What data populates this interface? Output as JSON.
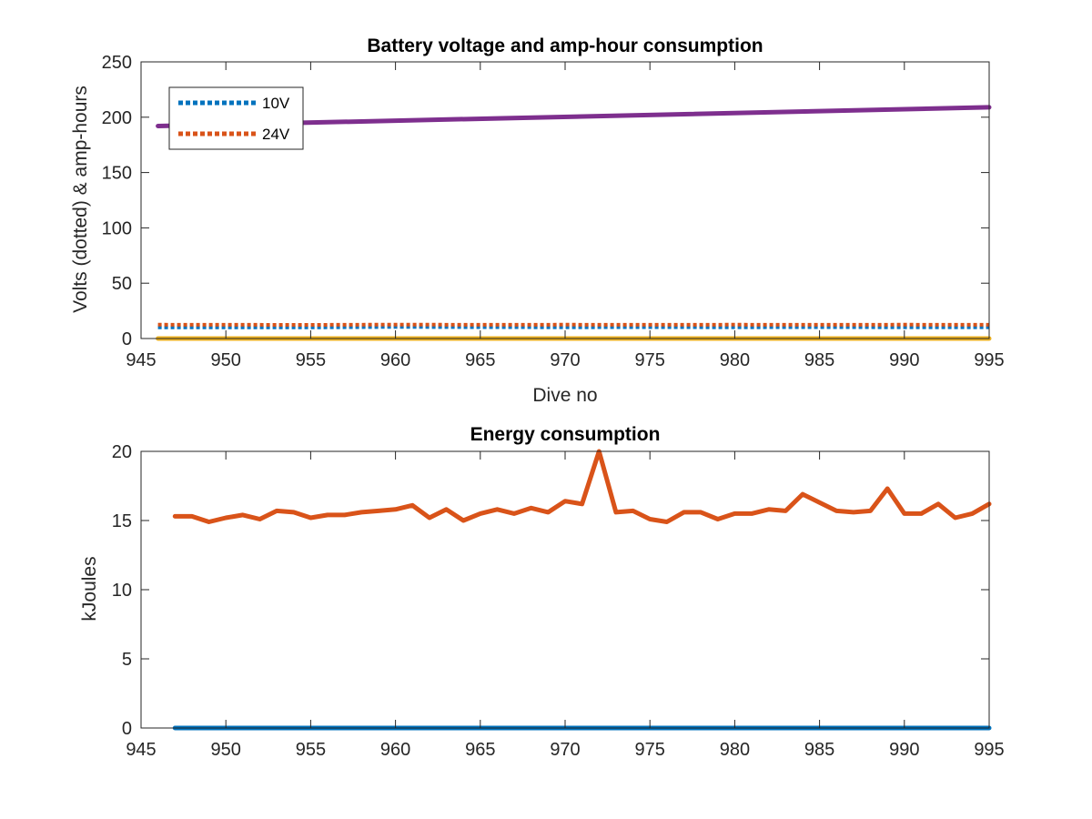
{
  "chart_data": [
    {
      "type": "line",
      "title": "Battery voltage and amp-hour consumption",
      "xlabel": "Dive no",
      "ylabel": "Volts (dotted) & amp-hours",
      "xlim": [
        945,
        995
      ],
      "ylim": [
        0,
        250
      ],
      "xticks": [
        945,
        950,
        955,
        960,
        965,
        970,
        975,
        980,
        985,
        990,
        995
      ],
      "yticks": [
        0,
        50,
        100,
        150,
        200,
        250
      ],
      "grid": false,
      "legend_position": "top-left",
      "series": [
        {
          "name": "10V",
          "style": "dotted",
          "color": "#0072BD",
          "x": [
            946,
            955,
            960,
            965,
            970,
            975,
            980,
            985,
            990,
            995
          ],
          "y": [
            10,
            10,
            10.5,
            10.3,
            10.2,
            10.3,
            10.2,
            10.3,
            10.2,
            10.2
          ]
        },
        {
          "name": "24V",
          "style": "dotted",
          "color": "#D95319",
          "x": [
            946,
            955,
            960,
            965,
            970,
            975,
            980,
            985,
            990,
            995
          ],
          "y": [
            12.5,
            12.3,
            12.6,
            12.4,
            12.5,
            12.4,
            12.5,
            12.4,
            12.5,
            12.4
          ]
        },
        {
          "style": "solid",
          "color": "#EDB120",
          "x": [
            946,
            995
          ],
          "y": [
            0,
            0
          ]
        },
        {
          "style": "solid",
          "color": "#7E2F8E",
          "x": [
            946,
            995
          ],
          "y": [
            192,
            209
          ]
        }
      ]
    },
    {
      "type": "line",
      "title": "Energy consumption",
      "xlabel": "",
      "ylabel": "kJoules",
      "xlim": [
        945,
        995
      ],
      "ylim": [
        0,
        20
      ],
      "xticks": [
        945,
        950,
        955,
        960,
        965,
        970,
        975,
        980,
        985,
        990,
        995
      ],
      "yticks": [
        0,
        5,
        10,
        15,
        20
      ],
      "grid": false,
      "series": [
        {
          "style": "solid",
          "color": "#D95319",
          "x": [
            947,
            948,
            949,
            950,
            951,
            952,
            953,
            954,
            955,
            956,
            957,
            958,
            959,
            960,
            961,
            962,
            963,
            964,
            965,
            966,
            967,
            968,
            969,
            970,
            971,
            972,
            973,
            974,
            975,
            976,
            977,
            978,
            979,
            980,
            981,
            982,
            983,
            984,
            985,
            986,
            987,
            988,
            989,
            990,
            991,
            992,
            993,
            994,
            995
          ],
          "y": [
            15.3,
            15.3,
            14.9,
            15.2,
            15.4,
            15.1,
            15.7,
            15.6,
            15.2,
            15.4,
            15.4,
            15.6,
            15.7,
            15.8,
            16.1,
            15.2,
            15.8,
            15.0,
            15.5,
            15.8,
            15.5,
            15.9,
            15.6,
            16.4,
            16.2,
            20.0,
            15.6,
            15.7,
            15.1,
            14.9,
            15.6,
            15.6,
            15.1,
            15.5,
            15.5,
            15.8,
            15.7,
            16.9,
            16.3,
            15.7,
            15.6,
            15.7,
            17.3,
            15.5,
            15.5,
            16.2,
            15.2,
            15.5,
            16.2
          ]
        },
        {
          "style": "solid",
          "color": "#0072BD",
          "x": [
            947,
            995
          ],
          "y": [
            0,
            0
          ]
        }
      ]
    }
  ]
}
